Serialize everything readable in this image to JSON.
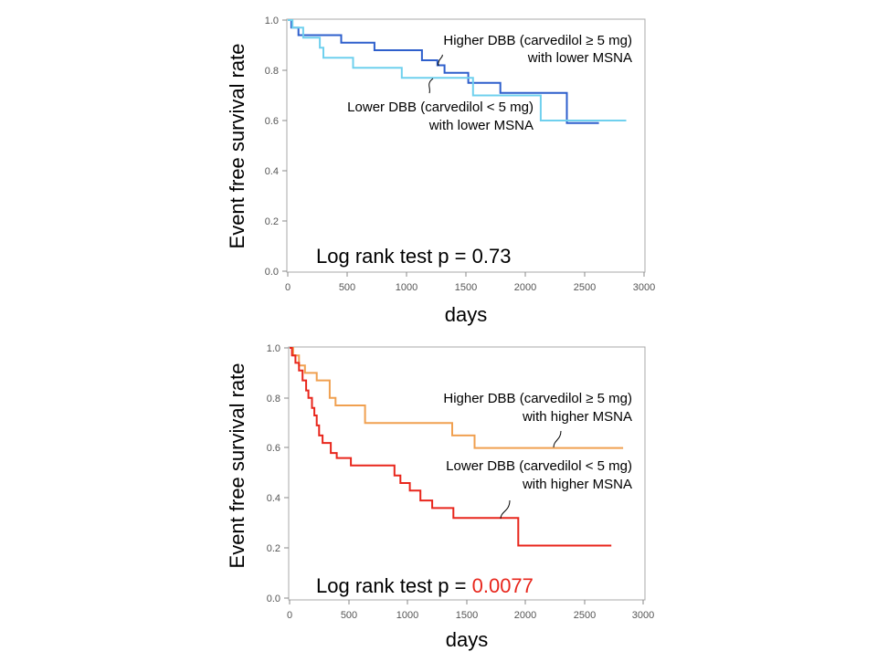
{
  "chart_data": [
    {
      "type": "line",
      "title": "",
      "xlabel": "days",
      "ylabel": "Event free survival rate",
      "xlim": [
        0,
        3000
      ],
      "ylim": [
        0.0,
        1.0
      ],
      "xticks": [
        "0",
        "500",
        "1000",
        "1500",
        "2000",
        "2500",
        "3000"
      ],
      "yticks": [
        "0.0",
        "0.2",
        "0.4",
        "0.6",
        "0.8",
        "1.0"
      ],
      "grid": false,
      "annotation_prefix": "Log rank test p = ",
      "annotation_value": "0.73",
      "annotation_value_color": "#000000",
      "series": [
        {
          "label_lines": [
            "Higher DBB (carvedilol ≥ 5 mg)",
            "with lower MSNA"
          ],
          "color": "#2e5fcc",
          "points": [
            [
              0,
              1.0
            ],
            [
              30,
              1.0
            ],
            [
              30,
              0.97
            ],
            [
              90,
              0.97
            ],
            [
              90,
              0.94
            ],
            [
              450,
              0.94
            ],
            [
              450,
              0.91
            ],
            [
              730,
              0.91
            ],
            [
              730,
              0.88
            ],
            [
              1130,
              0.88
            ],
            [
              1130,
              0.84
            ],
            [
              1260,
              0.84
            ],
            [
              1260,
              0.82
            ],
            [
              1320,
              0.82
            ],
            [
              1320,
              0.79
            ],
            [
              1520,
              0.79
            ],
            [
              1520,
              0.75
            ],
            [
              1790,
              0.75
            ],
            [
              1790,
              0.71
            ],
            [
              2350,
              0.71
            ],
            [
              2350,
              0.59
            ],
            [
              2620,
              0.59
            ]
          ]
        },
        {
          "label_lines": [
            "Lower DBB (carvedilol < 5 mg)",
            "with lower MSNA"
          ],
          "color": "#6fd0ee",
          "points": [
            [
              0,
              1.0
            ],
            [
              40,
              1.0
            ],
            [
              40,
              0.97
            ],
            [
              130,
              0.97
            ],
            [
              130,
              0.93
            ],
            [
              270,
              0.93
            ],
            [
              270,
              0.89
            ],
            [
              300,
              0.89
            ],
            [
              300,
              0.85
            ],
            [
              550,
              0.85
            ],
            [
              550,
              0.81
            ],
            [
              960,
              0.81
            ],
            [
              960,
              0.77
            ],
            [
              1560,
              0.77
            ],
            [
              1560,
              0.7
            ],
            [
              2130,
              0.7
            ],
            [
              2130,
              0.6
            ],
            [
              2850,
              0.6
            ]
          ]
        }
      ]
    },
    {
      "type": "line",
      "title": "",
      "xlabel": "days",
      "ylabel": "Event free survival rate",
      "xlim": [
        0,
        3000
      ],
      "ylim": [
        0.0,
        1.0
      ],
      "xticks": [
        "0",
        "500",
        "1000",
        "1500",
        "2000",
        "2500",
        "3000"
      ],
      "yticks": [
        "0.0",
        "0.2",
        "0.4",
        "0.6",
        "0.8",
        "1.0"
      ],
      "grid": false,
      "annotation_prefix": "Log rank test p = ",
      "annotation_value": "0.0077",
      "annotation_value_color": "#e8261c",
      "series": [
        {
          "label_lines": [
            "Higher DBB (carvedilol ≥ 5 mg)",
            "with higher MSNA"
          ],
          "color": "#f0a050",
          "points": [
            [
              0,
              1.0
            ],
            [
              30,
              1.0
            ],
            [
              30,
              0.97
            ],
            [
              80,
              0.97
            ],
            [
              80,
              0.93
            ],
            [
              130,
              0.93
            ],
            [
              130,
              0.9
            ],
            [
              230,
              0.9
            ],
            [
              230,
              0.87
            ],
            [
              340,
              0.87
            ],
            [
              340,
              0.8
            ],
            [
              390,
              0.8
            ],
            [
              390,
              0.77
            ],
            [
              640,
              0.77
            ],
            [
              640,
              0.7
            ],
            [
              1380,
              0.7
            ],
            [
              1380,
              0.65
            ],
            [
              1570,
              0.65
            ],
            [
              1570,
              0.6
            ],
            [
              2830,
              0.6
            ]
          ]
        },
        {
          "label_lines": [
            "Lower DBB (carvedilol < 5 mg)",
            "with higher MSNA"
          ],
          "color": "#e8261c",
          "points": [
            [
              0,
              1.0
            ],
            [
              20,
              1.0
            ],
            [
              20,
              0.97
            ],
            [
              50,
              0.97
            ],
            [
              50,
              0.94
            ],
            [
              80,
              0.94
            ],
            [
              80,
              0.91
            ],
            [
              110,
              0.91
            ],
            [
              110,
              0.87
            ],
            [
              140,
              0.87
            ],
            [
              140,
              0.83
            ],
            [
              160,
              0.83
            ],
            [
              160,
              0.8
            ],
            [
              190,
              0.8
            ],
            [
              190,
              0.76
            ],
            [
              210,
              0.76
            ],
            [
              210,
              0.73
            ],
            [
              230,
              0.73
            ],
            [
              230,
              0.69
            ],
            [
              250,
              0.69
            ],
            [
              250,
              0.65
            ],
            [
              280,
              0.65
            ],
            [
              280,
              0.62
            ],
            [
              350,
              0.62
            ],
            [
              350,
              0.58
            ],
            [
              400,
              0.58
            ],
            [
              400,
              0.56
            ],
            [
              520,
              0.56
            ],
            [
              520,
              0.53
            ],
            [
              890,
              0.53
            ],
            [
              890,
              0.49
            ],
            [
              940,
              0.49
            ],
            [
              940,
              0.46
            ],
            [
              1020,
              0.46
            ],
            [
              1020,
              0.43
            ],
            [
              1110,
              0.43
            ],
            [
              1110,
              0.39
            ],
            [
              1210,
              0.39
            ],
            [
              1210,
              0.36
            ],
            [
              1390,
              0.36
            ],
            [
              1390,
              0.32
            ],
            [
              1940,
              0.32
            ],
            [
              1940,
              0.21
            ],
            [
              2730,
              0.21
            ]
          ]
        }
      ]
    }
  ]
}
